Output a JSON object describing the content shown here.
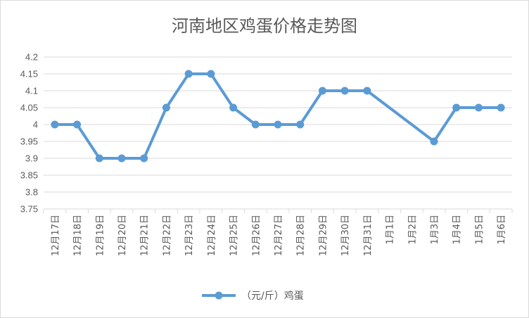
{
  "chart_data": {
    "type": "line",
    "title": "河南地区鸡蛋价格走势图",
    "categories": [
      "12月17日",
      "12月18日",
      "12月19日",
      "12月20日",
      "12月21日",
      "12月22日",
      "12月23日",
      "12月24日",
      "12月25日",
      "12月26日",
      "12月27日",
      "12月28日",
      "12月29日",
      "12月30日",
      "12月31日",
      "1月1日",
      "1月2日",
      "1月3日",
      "1月4日",
      "1月5日",
      "1月6日"
    ],
    "series": [
      {
        "name": "（元/斤）鸡蛋",
        "values": [
          4,
          4,
          3.9,
          3.9,
          3.9,
          4.05,
          4.15,
          4.15,
          4.05,
          4,
          4,
          4,
          4.1,
          4.1,
          4.1,
          null,
          null,
          3.95,
          4.05,
          4.05,
          4.05
        ],
        "color": "#5b9bd5"
      }
    ],
    "ylim": [
      3.75,
      4.2
    ],
    "yticks": [
      "4.2",
      "4.15",
      "4.1",
      "4.05",
      "4",
      "3.95",
      "3.9",
      "3.85",
      "3.8",
      "3.75"
    ],
    "span_gaps": true,
    "grid": true,
    "legend": "bottom"
  },
  "colors": {
    "series": "#5b9bd5",
    "grid": "#d9d9d9",
    "text": "#595959"
  }
}
